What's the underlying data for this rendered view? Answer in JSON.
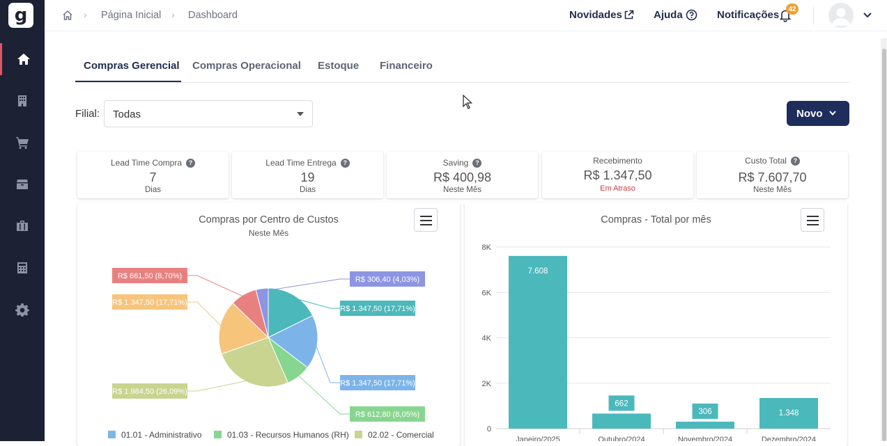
{
  "app": {
    "logo_text": "g"
  },
  "sidebar": {
    "items": [
      {
        "icon": "home-icon",
        "active": true
      },
      {
        "icon": "building-icon"
      },
      {
        "icon": "cart-icon"
      },
      {
        "icon": "box-icon"
      },
      {
        "icon": "briefcase-icon"
      },
      {
        "icon": "calculator-icon"
      },
      {
        "icon": "gear-icon"
      }
    ]
  },
  "breadcrumb": {
    "home_icon": "home-icon",
    "items": [
      "Página Inicial",
      "Dashboard"
    ]
  },
  "header": {
    "novidades": "Novidades",
    "ajuda": "Ajuda",
    "notificacoes": "Notificações",
    "notif_count": "42"
  },
  "tabs": [
    {
      "label": "Compras Gerencial",
      "active": true
    },
    {
      "label": "Compras Operacional"
    },
    {
      "label": "Estoque"
    },
    {
      "label": "Financeiro"
    }
  ],
  "filter": {
    "label": "Filial:",
    "value": "Todas"
  },
  "new_button": "Novo",
  "kpis": [
    {
      "title": "Lead Time Compra",
      "value": "7",
      "sub": "Dias",
      "help": "?"
    },
    {
      "title": "Lead Time Entrega",
      "value": "19",
      "sub": "Dias",
      "help": "?"
    },
    {
      "title": "Saving",
      "value": "R$ 400,98",
      "sub": "Neste Mês",
      "help": "?"
    },
    {
      "title": "Recebimento",
      "value": "R$ 1.347,50",
      "sub": "Em Atraso"
    },
    {
      "title": "Custo Total",
      "value": "R$ 7.607,70",
      "sub": "Neste Mês",
      "help": "?"
    }
  ],
  "chart_data": [
    {
      "type": "pie",
      "title": "Compras por Centro de Custos",
      "subtitle": "Neste Mês",
      "slices": [
        {
          "label": "R$ 1.347,50 (17,71%)",
          "value": 1347.5,
          "color": "#4bb8bb"
        },
        {
          "label": "R$ 1.347,50 (17,71%)",
          "value": 1347.5,
          "color": "#7cb4ea"
        },
        {
          "label": "R$ 612,80 (8,05%)",
          "value": 612.8,
          "color": "#86d68f"
        },
        {
          "label": "R$ 1.984,50 (26,09%)",
          "value": 1984.5,
          "color": "#c8d48f"
        },
        {
          "label": "R$ 1.347,50 (17,71%)",
          "value": 1347.5,
          "color": "#f7c47c"
        },
        {
          "label": "R$ 661,50 (8,70%)",
          "value": 661.5,
          "color": "#e98080"
        },
        {
          "label": "R$ 306,40 (4,03%)",
          "value": 306.4,
          "color": "#8d95e3"
        }
      ],
      "legend": [
        {
          "name": "01.01 - Administrativo",
          "color": "#7cb4ea"
        },
        {
          "name": "01.03 - Recursos Humanos (RH)",
          "color": "#86d68f"
        },
        {
          "name": "02.02 - Comercial",
          "color": "#c8d48f"
        }
      ]
    },
    {
      "type": "bar",
      "title": "Compras - Total por mês",
      "categories": [
        "Janeiro/2025",
        "Outubro/2024",
        "Novembro/2024",
        "Dezembro/2024"
      ],
      "values": [
        7608,
        662,
        306,
        1348
      ],
      "value_labels": [
        "7.608",
        "662",
        "306",
        "1.348"
      ],
      "yticks": [
        "0",
        "2K",
        "4K",
        "6K",
        "8K"
      ],
      "ylim": [
        0,
        8000
      ],
      "color": "#4bb8bb"
    }
  ]
}
